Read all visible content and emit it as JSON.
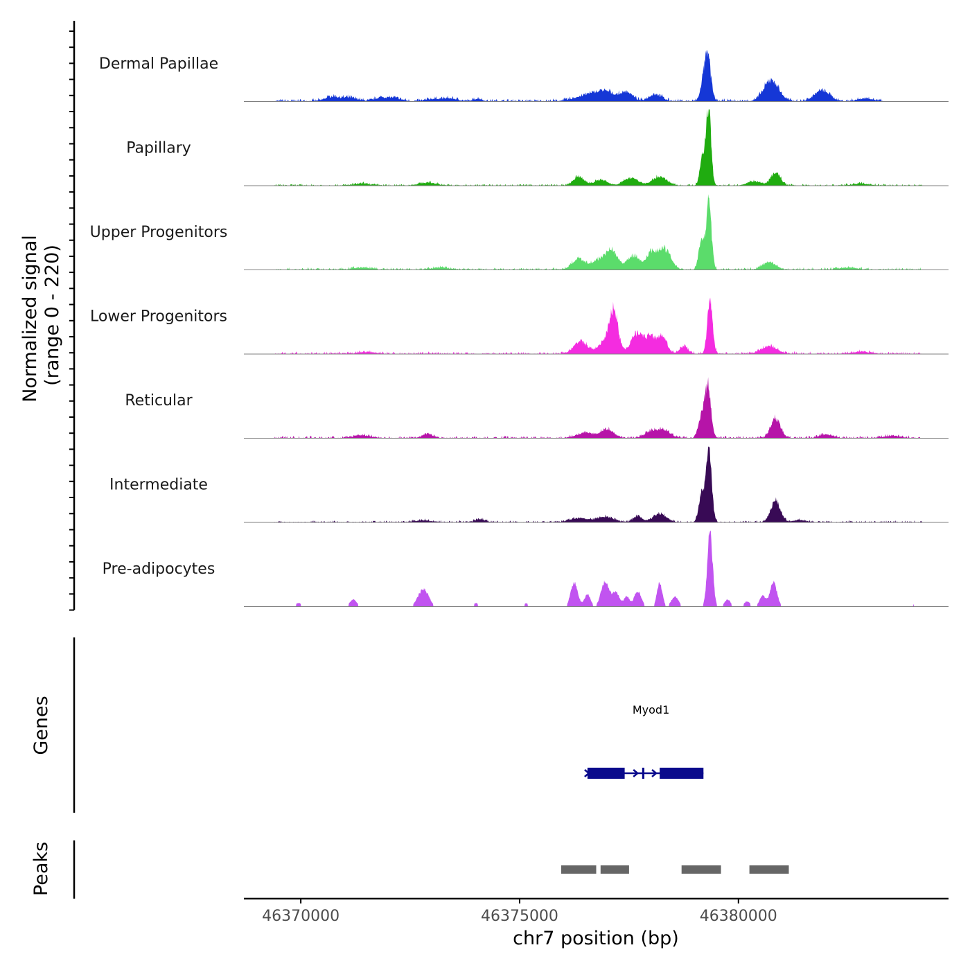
{
  "chart_data": {
    "type": "area",
    "title": "",
    "chromosome": "chr7",
    "xlabel": "chr7 position (bp)",
    "ylabel_line1": "Normalized signal",
    "ylabel_line2": "(range 0 - 220)",
    "y_range": [
      0,
      220
    ],
    "xlim": [
      46368700,
      46384800
    ],
    "x_ticks": [
      46370000,
      46375000,
      46380000
    ],
    "x_tick_labels": [
      "46370000",
      "46375000",
      "46380000"
    ],
    "series": [
      {
        "name": "Dermal Papillae",
        "color": "#1537d6",
        "peaks": [
          [
            46379300,
            120,
            70
          ],
          [
            46379200,
            45,
            70
          ],
          [
            46380750,
            60,
            170
          ],
          [
            46377450,
            25,
            130
          ],
          [
            46378100,
            20,
            150
          ],
          [
            46376650,
            20,
            320
          ],
          [
            46377000,
            18,
            200
          ],
          [
            46381850,
            20,
            160
          ],
          [
            46371100,
            10,
            200
          ],
          [
            46370700,
            12,
            150
          ],
          [
            46382000,
            14,
            150
          ],
          [
            46372100,
            10,
            180
          ],
          [
            46382900,
            8,
            180
          ],
          [
            46374050,
            8,
            80
          ],
          [
            46373400,
            8,
            180
          ],
          [
            46371800,
            8,
            120
          ],
          [
            46373000,
            6,
            150
          ]
        ],
        "noise": 6,
        "start": 46369400,
        "end": 46383300
      },
      {
        "name": "Papillary",
        "color": "#20ac10",
        "peaks": [
          [
            46379320,
            220,
            55
          ],
          [
            46379180,
            80,
            60
          ],
          [
            46380850,
            36,
            110
          ],
          [
            46378200,
            25,
            160
          ],
          [
            46377550,
            22,
            160
          ],
          [
            46376350,
            25,
            120
          ],
          [
            46376850,
            16,
            150
          ],
          [
            46380350,
            12,
            150
          ],
          [
            46372900,
            8,
            200
          ],
          [
            46371400,
            5,
            200
          ],
          [
            46382800,
            5,
            200
          ]
        ],
        "noise": 4,
        "start": 46369400,
        "end": 46384200
      },
      {
        "name": "Upper Progenitors",
        "color": "#5bdc6b",
        "peaks": [
          [
            46379320,
            200,
            60
          ],
          [
            46379150,
            80,
            60
          ],
          [
            46378300,
            60,
            150
          ],
          [
            46378000,
            45,
            110
          ],
          [
            46377100,
            55,
            140
          ],
          [
            46377600,
            40,
            140
          ],
          [
            46376350,
            30,
            150
          ],
          [
            46376800,
            25,
            150
          ],
          [
            46380700,
            22,
            150
          ],
          [
            46371400,
            6,
            200
          ],
          [
            46373200,
            6,
            200
          ],
          [
            46382500,
            6,
            200
          ]
        ],
        "noise": 5,
        "start": 46369400,
        "end": 46384200
      },
      {
        "name": "Lower Progenitors",
        "color": "#f42ce0",
        "peaks": [
          [
            46377150,
            130,
            100
          ],
          [
            46379350,
            150,
            60
          ],
          [
            46377700,
            60,
            150
          ],
          [
            46378250,
            50,
            110
          ],
          [
            46378000,
            40,
            100
          ],
          [
            46376400,
            35,
            160
          ],
          [
            46376900,
            30,
            120
          ],
          [
            46378750,
            20,
            100
          ],
          [
            46380700,
            22,
            180
          ],
          [
            46371500,
            5,
            200
          ],
          [
            46382800,
            6,
            200
          ]
        ],
        "noise": 5,
        "start": 46369400,
        "end": 46384200
      },
      {
        "name": "Reticular",
        "color": "#b614a8",
        "peaks": [
          [
            46379300,
            150,
            70
          ],
          [
            46379150,
            60,
            70
          ],
          [
            46380850,
            55,
            110
          ],
          [
            46377000,
            25,
            150
          ],
          [
            46378300,
            22,
            150
          ],
          [
            46376500,
            15,
            200
          ],
          [
            46378000,
            18,
            150
          ],
          [
            46372900,
            12,
            120
          ],
          [
            46371400,
            8,
            200
          ],
          [
            46382000,
            10,
            150
          ],
          [
            46383500,
            6,
            200
          ]
        ],
        "noise": 5,
        "start": 46369400,
        "end": 46384200
      },
      {
        "name": "Intermediate",
        "color": "#380a55",
        "peaks": [
          [
            46379320,
            210,
            65
          ],
          [
            46379150,
            80,
            60
          ],
          [
            46380850,
            60,
            110
          ],
          [
            46378200,
            25,
            150
          ],
          [
            46377700,
            18,
            100
          ],
          [
            46376950,
            15,
            200
          ],
          [
            46376350,
            12,
            200
          ],
          [
            46374100,
            8,
            120
          ],
          [
            46372800,
            5,
            200
          ],
          [
            46381400,
            6,
            150
          ]
        ],
        "noise": 4,
        "start": 46369400,
        "end": 46384200
      },
      {
        "name": "Pre-adipocytes",
        "color": "#c154f0",
        "peaks": [
          [
            46379350,
            215,
            60
          ],
          [
            46376250,
            70,
            80
          ],
          [
            46376950,
            70,
            90
          ],
          [
            46380800,
            70,
            80
          ],
          [
            46378200,
            70,
            60
          ],
          [
            46372800,
            50,
            120
          ],
          [
            46377700,
            45,
            80
          ],
          [
            46377200,
            40,
            90
          ],
          [
            46376550,
            35,
            70
          ],
          [
            46377450,
            30,
            60
          ],
          [
            46378550,
            30,
            80
          ],
          [
            46380550,
            30,
            70
          ],
          [
            46379750,
            20,
            70
          ],
          [
            46371200,
            20,
            80
          ],
          [
            46380200,
            15,
            70
          ],
          [
            46369950,
            10,
            80
          ],
          [
            46374000,
            10,
            60
          ],
          [
            46375150,
            10,
            60
          ],
          [
            46384000,
            8,
            40
          ]
        ],
        "noise": 0,
        "threshold": 8,
        "start": 46369400,
        "end": 46384200
      }
    ],
    "genes_track_label": "Genes",
    "genes": [
      {
        "name": "Myod1",
        "start": 46376550,
        "end": 46379200,
        "strand": "+",
        "exons": [
          [
            46376550,
            46377400
          ],
          [
            46377800,
            46377850
          ],
          [
            46378200,
            46379200
          ]
        ]
      }
    ],
    "peaks_track_label": "Peaks",
    "peaks": [
      [
        46375950,
        46376750
      ],
      [
        46376850,
        46377500
      ],
      [
        46378700,
        46379600
      ],
      [
        46380250,
        46381150
      ]
    ],
    "colors": {
      "gene": "#0a0a8c",
      "peak": "#666666",
      "baseline": "#7f7f7f",
      "axis": "#000000"
    }
  }
}
